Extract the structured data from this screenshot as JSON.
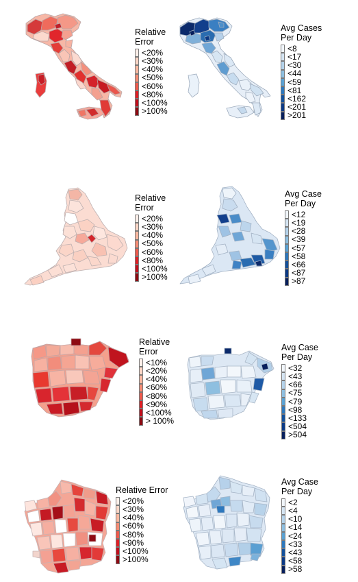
{
  "palettes": {
    "red": [
      "#fef0ea",
      "#fcd6c6",
      "#fab8a0",
      "#f58c74",
      "#ef5a4c",
      "#e01f25",
      "#c20e1c",
      "#8e0a12"
    ],
    "blue": [
      "#f0f5fb",
      "#d4e4f2",
      "#b4d2ea",
      "#8ebfe0",
      "#5aa2d4",
      "#2d78bd",
      "#13519c",
      "#0b3a86",
      "#061f5c"
    ]
  },
  "panels": [
    {
      "country": "Italy",
      "left_legend": {
        "title": "Relative\nError",
        "labels": [
          "<20%",
          "<30%",
          "<40%",
          "<50%",
          "<60%",
          "<80%",
          "<100%",
          ">100%"
        ]
      },
      "right_legend": {
        "title": "Avg Cases\nPer Day",
        "labels": [
          "<8",
          "<17",
          "<30",
          "<44",
          "<59",
          "<81",
          "<162",
          "<201",
          ">201"
        ]
      }
    },
    {
      "country": "England",
      "left_legend": {
        "title": "Relative\nError",
        "labels": [
          "<20%",
          "<30%",
          "<40%",
          "<50%",
          "<60%",
          "<80%",
          "<100%",
          ">100%"
        ]
      },
      "right_legend": {
        "title": "Avg Case\nPer Day",
        "labels": [
          "<12",
          "<19",
          "<28",
          "<39",
          "<57",
          "<58",
          "<66",
          "<87",
          ">87"
        ]
      }
    },
    {
      "country": "Spain",
      "left_legend": {
        "title": "Relative\nError",
        "labels": [
          "<10%",
          "<20%",
          "<40%",
          "<60%",
          "<80%",
          "<90%",
          "<100%",
          "> 100%"
        ]
      },
      "right_legend": {
        "title": "Avg Case\nPer Day",
        "labels": [
          "<32",
          "<43",
          "<66",
          "<75",
          "<79",
          "<98",
          "<133",
          "<504",
          ">504"
        ]
      }
    },
    {
      "country": "France",
      "left_legend": {
        "title": "Relative Error",
        "labels": [
          "<20%",
          "<30%",
          "<40%",
          "<60%",
          "<80%",
          "<90%",
          "<100%",
          ">100%"
        ]
      },
      "right_legend": {
        "title": "Avg Case\nPer Day",
        "labels": [
          "<2",
          "<4",
          "<10",
          "<14",
          "<24",
          "<33",
          "<43",
          "<58",
          ">58"
        ]
      }
    }
  ]
}
